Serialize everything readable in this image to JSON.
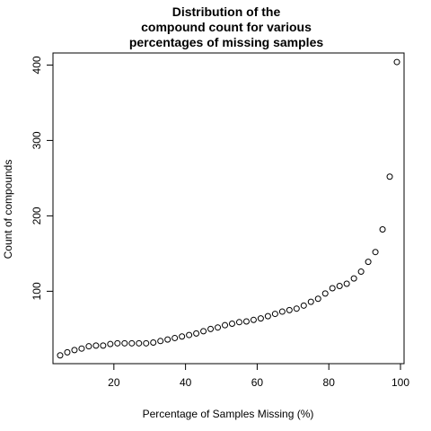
{
  "chart_data": {
    "type": "scatter",
    "title_lines": [
      "Distribution of the",
      "compound count for various",
      "percentages of missing samples"
    ],
    "xlabel": "Percentage of Samples Missing (%)",
    "ylabel": "Count of compounds",
    "xlim": [
      3,
      101
    ],
    "ylim": [
      4,
      416
    ],
    "xticks": [
      20,
      40,
      60,
      80,
      100
    ],
    "yticks": [
      100,
      200,
      300,
      400
    ],
    "grid": false,
    "marker": "open-circle",
    "x": [
      5,
      7,
      9,
      11,
      13,
      15,
      17,
      19,
      21,
      23,
      25,
      27,
      29,
      31,
      33,
      35,
      37,
      39,
      41,
      43,
      45,
      47,
      49,
      51,
      53,
      55,
      57,
      59,
      61,
      63,
      65,
      67,
      69,
      71,
      73,
      75,
      77,
      79,
      81,
      83,
      85,
      87,
      89,
      91,
      93,
      95,
      97,
      99
    ],
    "y": [
      15,
      19,
      22,
      24,
      27,
      28,
      28,
      30,
      31,
      31,
      31,
      31,
      31,
      32,
      34,
      36,
      38,
      40,
      42,
      44,
      47,
      50,
      52,
      55,
      57,
      59,
      60,
      62,
      64,
      67,
      70,
      73,
      75,
      77,
      81,
      86,
      90,
      97,
      104,
      107,
      110,
      117,
      126,
      139,
      152,
      182,
      252,
      404
    ]
  }
}
